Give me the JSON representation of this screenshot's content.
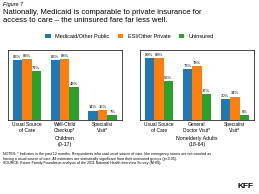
{
  "title": "Nationally, Medicaid is comparable to private insurance for\naccess to care – the uninsured fare far less well.",
  "annotations": [
    "Figure 7",
    "NOTES: * Indicates in the past 12 months. Respondents who said usual source of care, like emergency rooms are not counted as\nhaving a usual source of care. All estimates are statistically significant from their uninsured groups (p<0.05).\nSOURCE: Kaiser Family Foundation analysis of the 2011 National Health Interview Survey (NHIS).",
    "KFF"
  ],
  "legend": "upper center",
  "chart_data": [
    {
      "type": "bar",
      "x_label": "Children\n(0-17)",
      "categories": [
        "Usual Source\nof Care",
        "Well-Child\nCheckup*",
        "Specialist\nVisit*"
      ],
      "series": [
        {
          "name": "Medicaid/Other Public",
          "values": [
            86,
            86,
            14
          ],
          "value_labels": [
            "86%",
            "86%",
            "14%"
          ]
        },
        {
          "name": "ESI/Other Private",
          "values": [
            88,
            88,
            15
          ],
          "value_labels": [
            "88%",
            "88%",
            "15%"
          ]
        },
        {
          "name": "Uninsured",
          "values": [
            71,
            48,
            7
          ],
          "value_labels": [
            "71%",
            "48%",
            "7%"
          ]
        }
      ],
      "ylim": [
        0,
        100
      ],
      "data_labels": true,
      "tick_labels": "x",
      "grid": false
    },
    {
      "type": "bar",
      "x_label": "Nonelderly Adults\n(18-64)",
      "categories": [
        "Usual Source\nof Care",
        "General\nDoctor Visit*",
        "Specialist\nVisit*"
      ],
      "series": [
        {
          "name": "Medicaid/Other Public",
          "values": [
            89,
            73,
            30
          ],
          "value_labels": [
            "89%",
            "73%",
            "30%"
          ]
        },
        {
          "name": "ESI/Other Private",
          "values": [
            89,
            78,
            34
          ],
          "value_labels": [
            "89%",
            "78%",
            "34%"
          ]
        },
        {
          "name": "Uninsured",
          "values": [
            56,
            37,
            8
          ],
          "value_labels": [
            "56%",
            "37%",
            "8%"
          ]
        }
      ],
      "ylim": [
        0,
        100
      ],
      "data_labels": true,
      "tick_labels": "x",
      "grid": false
    }
  ]
}
